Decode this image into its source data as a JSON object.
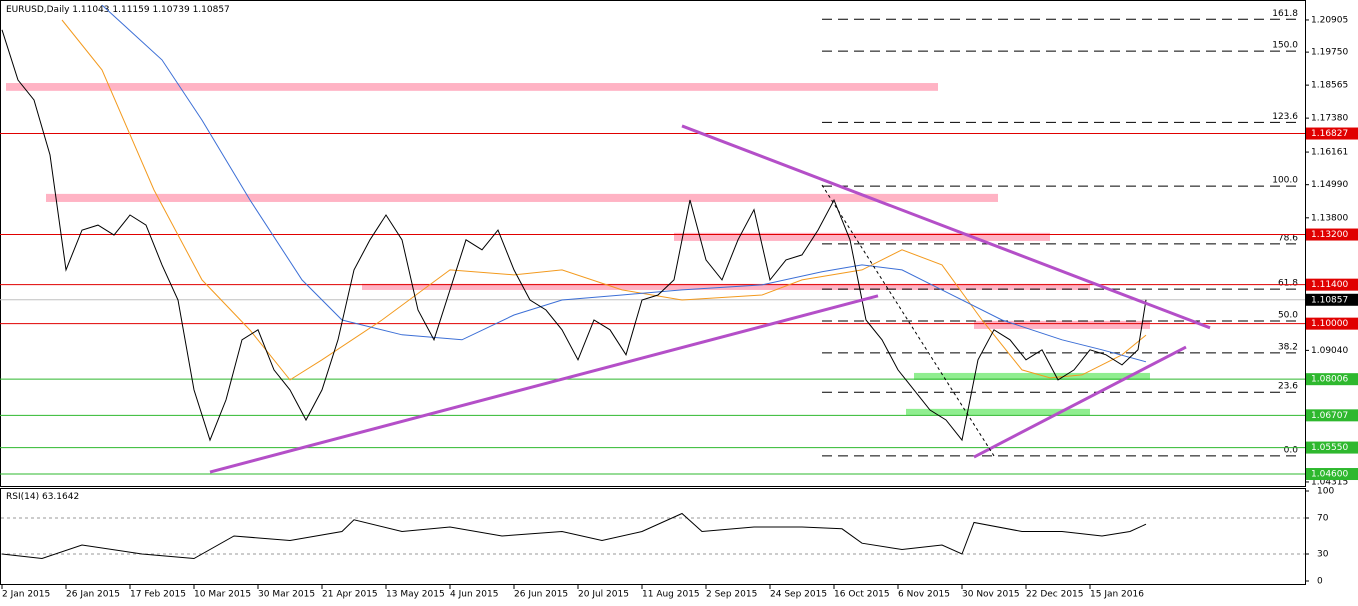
{
  "chart_data": [
    {
      "type": "line",
      "title": "EURUSD,Daily",
      "ohlc": [
        1.11043,
        1.11159,
        1.10739,
        1.10857
      ],
      "x": [
        0,
        4,
        8,
        12,
        16,
        20,
        24,
        28,
        32,
        36,
        40,
        44,
        48,
        52,
        56,
        60,
        64,
        68,
        72,
        76,
        80,
        84,
        88,
        92,
        96,
        100,
        104,
        108,
        112,
        116,
        120,
        124,
        128,
        132,
        136,
        140,
        144,
        148,
        152,
        156,
        160,
        164,
        168,
        172,
        176,
        180,
        184,
        188,
        192,
        196,
        200,
        204,
        208,
        212,
        216,
        220,
        224,
        228,
        232,
        236,
        240,
        244,
        248,
        252,
        256,
        260,
        264,
        268,
        272,
        276,
        280,
        284,
        286
      ],
      "series": [
        {
          "color": "#000000",
          "values": [
            1.2055,
            1.1875,
            1.1803,
            1.1606,
            1.1193,
            1.1336,
            1.1354,
            1.1318,
            1.139,
            1.1354,
            1.1211,
            1.1085,
            1.0762,
            1.0582,
            1.0726,
            1.0942,
            1.0978,
            1.0834,
            1.0762,
            1.0654,
            1.0762,
            1.0942,
            1.1193,
            1.1301,
            1.139,
            1.1301,
            1.1049,
            1.0942,
            1.1121,
            1.1301,
            1.1265,
            1.1336,
            1.1193,
            1.1085,
            1.1049,
            1.0978,
            1.087,
            1.1013,
            1.0978,
            1.0888,
            1.1085,
            1.1103,
            1.1157,
            1.1444,
            1.1229,
            1.1157,
            1.1301,
            1.1409,
            1.1157,
            1.1229,
            1.1247,
            1.1336,
            1.1444,
            1.1301,
            1.1013,
            1.0942,
            1.0834,
            1.0762,
            1.069,
            1.0654,
            1.0582,
            1.087,
            1.0978,
            1.0942,
            1.087,
            1.0906,
            1.0798,
            1.0834,
            1.0906,
            1.0888,
            1.0852,
            1.0906,
            1.10857
          ]
        }
      ],
      "moving_averages": [
        {
          "color": "#f39a1e",
          "x": [
            15,
            25,
            38,
            50,
            62,
            72,
            80,
            95,
            112,
            128,
            140,
            155,
            170,
            190,
            200,
            215,
            225,
            235,
            245,
            255,
            262,
            270,
            280,
            286
          ],
          "values": [
            1.20905,
            1.1911,
            1.148,
            1.1157,
            1.0977,
            1.0798,
            1.087,
            1.1013,
            1.1193,
            1.1175,
            1.1193,
            1.1121,
            1.1085,
            1.1103,
            1.1157,
            1.1193,
            1.1265,
            1.1211,
            1.1013,
            1.0834,
            1.0805,
            1.0816,
            1.0888,
            1.0959
          ]
        },
        {
          "color": "#3c6fd6",
          "x": [
            25,
            40,
            50,
            62,
            75,
            85,
            100,
            115,
            128,
            140,
            155,
            170,
            190,
            205,
            215,
            225,
            235,
            250,
            265,
            275,
            286
          ],
          "values": [
            1.2144,
            1.1947,
            1.1731,
            1.1444,
            1.1157,
            1.1013,
            1.096,
            1.0942,
            1.1031,
            1.1085,
            1.1103,
            1.1121,
            1.1139,
            1.1186,
            1.1211,
            1.1193,
            1.1121,
            1.1013,
            1.0942,
            1.0906,
            1.0863
          ]
        }
      ],
      "xlim": [
        0,
        326
      ],
      "ylim": [
        1.0417,
        1.2155
      ],
      "yticks": [
        1.20905,
        {
          "value": 1.1975,
          "label": "1.19750"
        },
        1.18565,
        {
          "value": 1.1738,
          "label": "1.17380"
        },
        1.16161,
        {
          "value": 1.1499,
          "label": "1.14990"
        },
        {
          "value": 1.138,
          "label": "1.13800"
        },
        {
          "value": 1.0904,
          "label": "1.09040"
        },
        1.04315
      ],
      "xticks": [
        {
          "value": 0,
          "label": "2 Jan 2015"
        },
        {
          "value": 16,
          "label": "26 Jan 2015"
        },
        {
          "value": 32,
          "label": "17 Feb 2015"
        },
        {
          "value": 48,
          "label": "10 Mar 2015"
        },
        {
          "value": 64,
          "label": "30 Mar 2015"
        },
        {
          "value": 80,
          "label": "21 Apr 2015"
        },
        {
          "value": 96,
          "label": "13 May 2015"
        },
        {
          "value": 112,
          "label": "4 Jun 2015"
        },
        {
          "value": 128,
          "label": "26 Jun 2015"
        },
        {
          "value": 144,
          "label": "20 Jul 2015"
        },
        {
          "value": 160,
          "label": "11 Aug 2015"
        },
        {
          "value": 176,
          "label": "2 Sep 2015"
        },
        {
          "value": 192,
          "label": "24 Sep 2015"
        },
        {
          "value": 208,
          "label": "16 Oct 2015"
        },
        {
          "value": 224,
          "label": "6 Nov 2015"
        },
        {
          "value": 240,
          "label": "30 Nov 2015"
        },
        {
          "value": 256,
          "label": "22 Dec 2015"
        },
        {
          "value": 272,
          "label": "15 Jan 2016"
        }
      ],
      "levels": [
        {
          "value": 1.16827,
          "color": "#e00000"
        },
        {
          "value": 1.132,
          "label": "1.13200",
          "color": "#e00000"
        },
        {
          "value": 1.114,
          "label": "1.11400",
          "color": "#e00000"
        },
        {
          "value": 1.1,
          "label": "1.10000",
          "color": "#e00000"
        },
        {
          "value": 1.08006,
          "color": "#2eb82e"
        },
        {
          "value": 1.06707,
          "color": "#2eb82e"
        },
        {
          "value": 1.0555,
          "label": "1.05550",
          "color": "#2eb82e"
        },
        {
          "value": 1.046,
          "label": "1.04600",
          "color": "#2eb82e"
        }
      ],
      "current_price": 1.10857,
      "zones": [
        {
          "x": [
            1,
            234
          ],
          "y": [
            1.1836,
            1.1864
          ],
          "color": "#ffb3c4"
        },
        {
          "x": [
            11,
            249
          ],
          "y": [
            1.1437,
            1.1466
          ],
          "color": "#ffb3c4"
        },
        {
          "x": [
            168,
            262
          ],
          "y": [
            1.1297,
            1.1326
          ],
          "color": "#ffb3c4"
        },
        {
          "x": [
            90,
            272
          ],
          "y": [
            1.1121,
            1.1143
          ],
          "color": "#ffb3c4"
        },
        {
          "x": [
            243,
            287
          ],
          "y": [
            1.0981,
            1.101
          ],
          "color": "#ffb3c4"
        },
        {
          "x": [
            228,
            287
          ],
          "y": [
            1.0798,
            1.0823
          ],
          "color": "#90ee90"
        },
        {
          "x": [
            226,
            272
          ],
          "y": [
            1.0672,
            1.0694
          ],
          "color": "#90ee90"
        }
      ],
      "trendlines": [
        {
          "x": [
            52,
            219
          ],
          "y": [
            1.0467,
            1.11
          ],
          "color": "#b44fc8"
        },
        {
          "x": [
            170,
            302
          ],
          "y": [
            1.171,
            1.0985
          ],
          "color": "#b44fc8"
        },
        {
          "x": [
            243,
            296
          ],
          "y": [
            1.0521,
            1.0916
          ],
          "color": "#b44fc8"
        },
        {
          "x": [
            205,
            248
          ],
          "y": [
            1.1498,
            1.0525
          ],
          "color": "#000000",
          "dash": true
        }
      ],
      "fib": {
        "x_start": 205,
        "low": 1.0525,
        "high": 1.1494,
        "levels": [
          161.8,
          {
            "value": 150,
            "label": "150.0"
          },
          123.6,
          {
            "value": 100,
            "label": "100.0"
          },
          78.6,
          61.8,
          {
            "value": 50,
            "label": "50.0"
          },
          38.2,
          23.6,
          {
            "value": 0,
            "label": "0.0"
          }
        ]
      }
    },
    {
      "type": "line",
      "title": "RSI(14)",
      "value": 63.1642,
      "x": [
        0,
        10,
        20,
        35,
        48,
        58,
        72,
        85,
        88,
        100,
        112,
        125,
        140,
        150,
        160,
        170,
        175,
        188,
        200,
        210,
        215,
        225,
        235,
        240,
        243,
        255,
        265,
        275,
        282,
        286
      ],
      "series": [
        {
          "color": "#000000",
          "values": [
            30,
            25,
            40,
            30,
            25,
            50,
            45,
            55,
            68,
            55,
            60,
            50,
            55,
            45,
            55,
            75,
            55,
            60,
            60,
            58,
            42,
            35,
            40,
            30,
            65,
            55,
            55,
            50,
            55,
            63.1642
          ]
        }
      ],
      "ylim": [
        0,
        100
      ],
      "yticks": [
        0,
        30,
        70,
        100
      ],
      "levels": [
        30,
        70
      ]
    }
  ]
}
